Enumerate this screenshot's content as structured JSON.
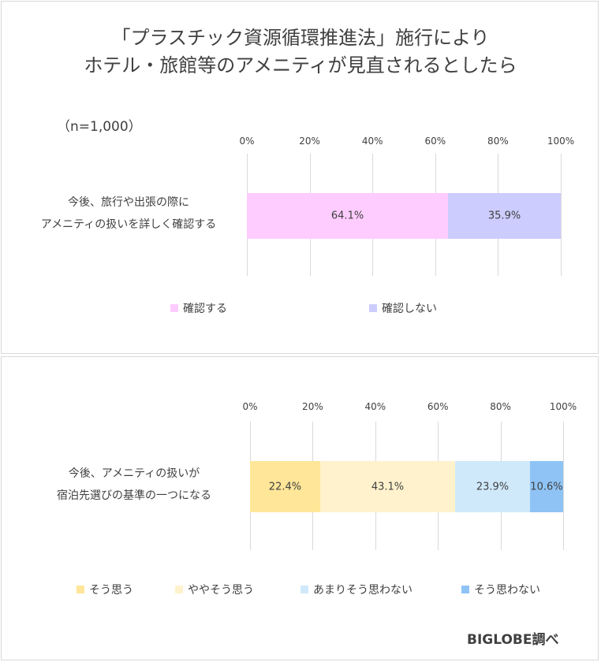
{
  "title_line1": "「プラスチック資源循環推進法」施行により",
  "title_line2": "ホテル・旅館等のアメニティが見直されるとしたら",
  "sample_note": "（n=1,000）",
  "credit": "BIGLOBE調べ",
  "chart_data": [
    {
      "type": "bar",
      "orientation": "horizontal-stacked-100",
      "x_ticks": [
        "0%",
        "20%",
        "40%",
        "60%",
        "80%",
        "100%"
      ],
      "xlim": [
        0,
        100
      ],
      "categories": [
        "今後、旅行や出張の際に\nアメニティの扱いを詳しく確認する"
      ],
      "category_lines": [
        "今後、旅行や出張の際に",
        "アメニティの扱いを詳しく確認する"
      ],
      "series": [
        {
          "name": "確認する",
          "values": [
            64.1
          ],
          "label": "64.1%",
          "color": "#ffccff"
        },
        {
          "name": "確認しない",
          "values": [
            35.9
          ],
          "label": "35.9%",
          "color": "#ccccff"
        }
      ],
      "legend_position": "bottom"
    },
    {
      "type": "bar",
      "orientation": "horizontal-stacked-100",
      "x_ticks": [
        "0%",
        "20%",
        "40%",
        "60%",
        "80%",
        "100%"
      ],
      "xlim": [
        0,
        100
      ],
      "categories": [
        "今後、アメニティの扱いが\n宿泊先選びの基準の一つになる"
      ],
      "category_lines": [
        "今後、アメニティの扱いが",
        "宿泊先選びの基準の一つになる"
      ],
      "series": [
        {
          "name": "そう思う",
          "values": [
            22.4
          ],
          "label": "22.4%",
          "color": "#ffe699"
        },
        {
          "name": "ややそう思う",
          "values": [
            43.1
          ],
          "label": "43.1%",
          "color": "#fff2cc"
        },
        {
          "name": "あまりそう思わない",
          "values": [
            23.9
          ],
          "label": "23.9%",
          "color": "#cfe9fb"
        },
        {
          "name": "そう思わない",
          "values": [
            10.6
          ],
          "label": "10.6%",
          "color": "#8fc3f5"
        }
      ],
      "legend_position": "bottom"
    }
  ]
}
